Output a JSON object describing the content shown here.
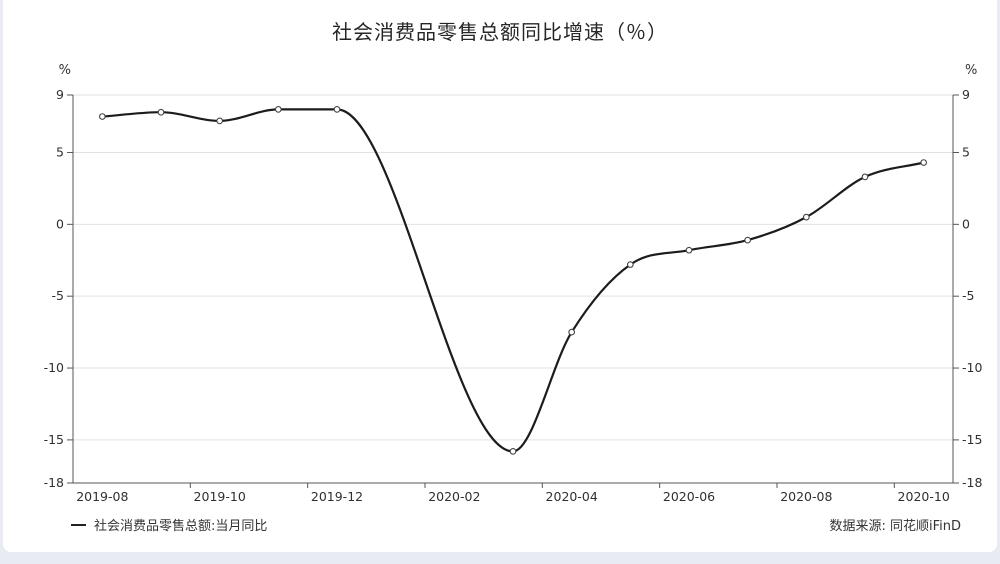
{
  "page": {
    "background": "#e8ecf2",
    "card_background": "#ffffff"
  },
  "chart_data": {
    "type": "line",
    "title": "社会消费品零售总额同比增速（％）",
    "y_axis_unit": "%",
    "categories": [
      "2019-08",
      "2019-09",
      "2019-10",
      "2019-11",
      "2019-12",
      "2020-01",
      "2020-02",
      "2020-03",
      "2020-04",
      "2020-05",
      "2020-06",
      "2020-07",
      "2020-08",
      "2020-09",
      "2020-10"
    ],
    "series": [
      {
        "name": "社会消费品零售总额:当月同比",
        "values": [
          7.5,
          7.8,
          7.2,
          8.0,
          8.0,
          null,
          null,
          -15.8,
          -7.5,
          -2.8,
          -1.8,
          -1.1,
          0.5,
          3.3,
          4.3
        ]
      }
    ],
    "y_ticks": [
      9,
      5,
      0,
      -5,
      -10,
      -15,
      -18
    ],
    "x_tick_labels": [
      "2019-08",
      "2019-10",
      "2019-12",
      "2020-02",
      "2020-04",
      "2020-06",
      "2020-08",
      "2020-10"
    ],
    "ylim": [
      -18,
      9
    ],
    "grid": true,
    "legend_position": "bottom-left",
    "line_color": "#1c1c1c",
    "marker_fill": "#ffffff",
    "marker_stroke": "#444444",
    "grid_color": "#e2e2e2",
    "axis_color": "#555555",
    "text_color": "#303030"
  },
  "footer": {
    "source": "数据来源: 同花顺iFinD"
  }
}
